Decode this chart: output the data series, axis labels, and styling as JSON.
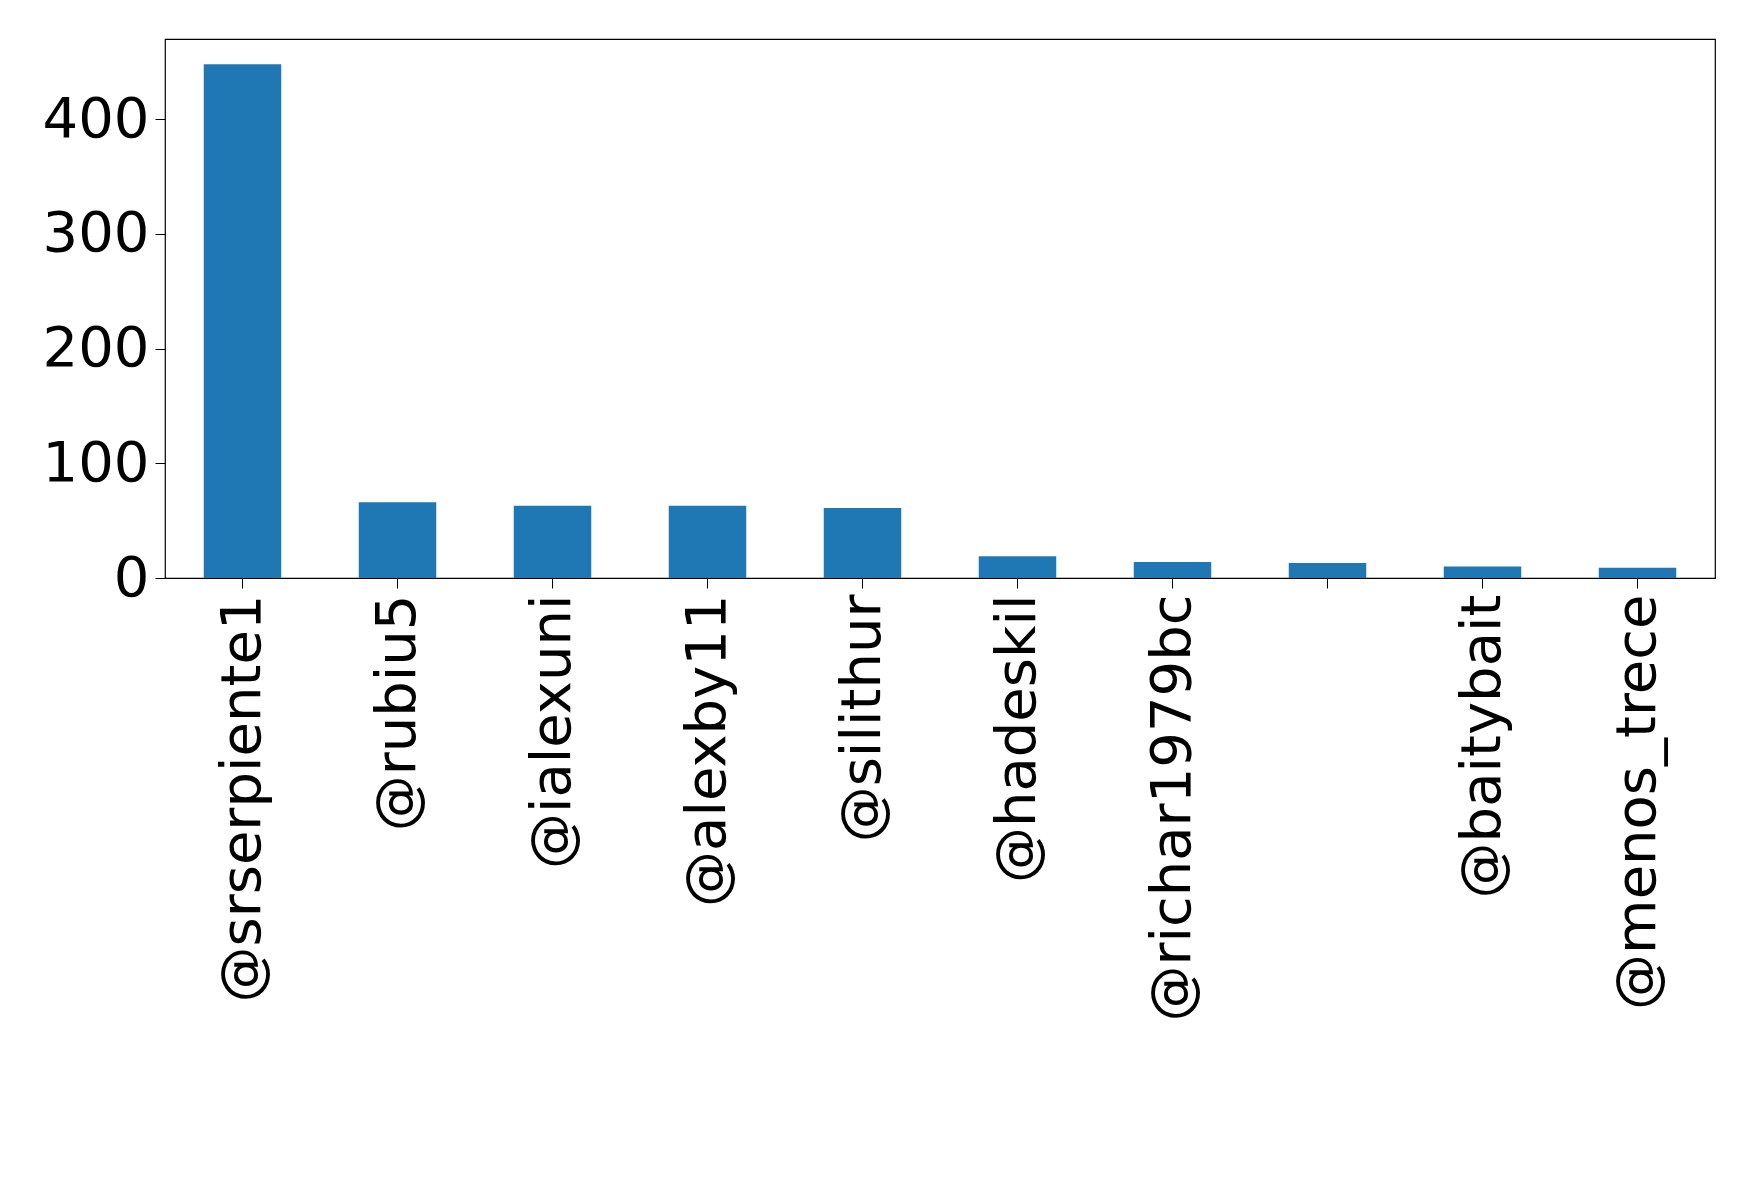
{
  "chart_data": {
    "type": "bar",
    "categories": [
      "@srserpiente1",
      "@rubiu5",
      "@ialexuni",
      "@alexby11",
      "@silithur",
      "@hadeskil",
      "@richar1979bc",
      null,
      "@baitybait",
      "@menos_trece"
    ],
    "values": [
      448,
      66,
      63,
      63,
      61,
      19,
      14,
      13,
      10,
      9
    ],
    "color": "#1f77b4",
    "ylim": [
      0,
      470
    ],
    "yticks": [
      0,
      100,
      200,
      300,
      400
    ],
    "grid": false
  }
}
